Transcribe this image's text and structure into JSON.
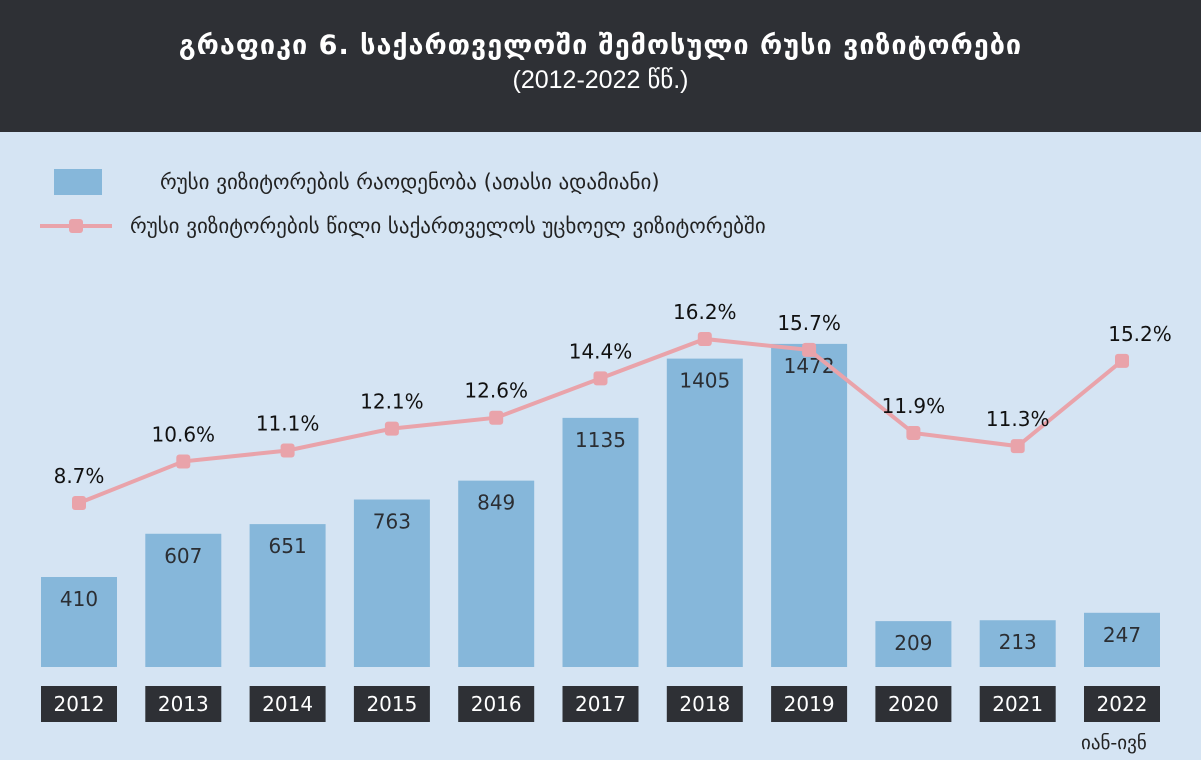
{
  "chart_data": {
    "type": "bar",
    "title": "გრაფიკი 6. საქართველოში შემოსული რუსი ვიზიტორები",
    "subtitle": "(2012-2022 წწ.)",
    "categories": [
      "2012",
      "2013",
      "2014",
      "2015",
      "2016",
      "2017",
      "2018",
      "2019",
      "2020",
      "2021",
      "2022"
    ],
    "series": [
      {
        "name": "რუსი ვიზიტორების რაოდენობა (ათასი ადამიანი)",
        "type": "bar",
        "color": "#86b7da",
        "values": [
          410,
          607,
          651,
          763,
          849,
          1135,
          1405,
          1472,
          209,
          213,
          247
        ]
      },
      {
        "name": "რუსი ვიზიტორების წილი საქართველოს უცხოელ ვიზიტორებში",
        "type": "line",
        "color": "#e9a3aa",
        "unit": "%",
        "values": [
          8.7,
          10.6,
          11.1,
          12.1,
          12.6,
          14.4,
          16.2,
          15.7,
          11.9,
          11.3,
          15.2
        ]
      }
    ],
    "legend_position": "top-left",
    "grid": false,
    "annotation": "იან-ივნ"
  }
}
